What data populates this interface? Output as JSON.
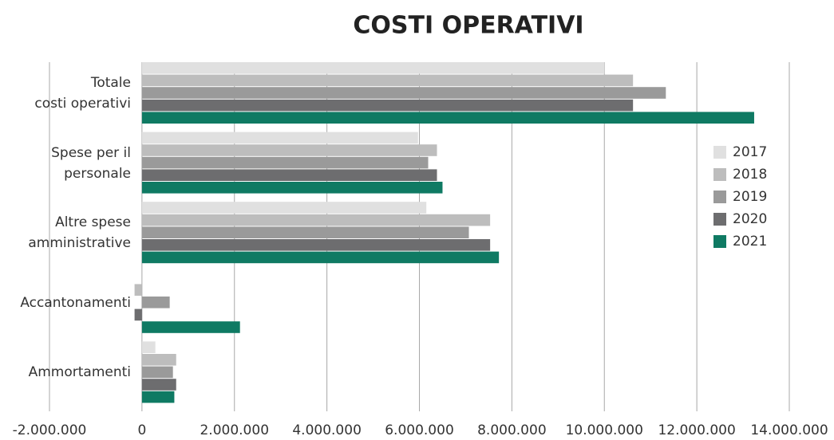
{
  "chart_data": {
    "type": "hbar",
    "title": "COSTI OPERATIVI",
    "categories": [
      "Totale\ncosti operativi",
      "Spese per il\npersonale",
      "Altre spese\namministrative",
      "Accantonamenti",
      "Ammortamenti"
    ],
    "series": [
      {
        "name": "2017",
        "color": "#e0e0e0",
        "values": [
          10000000,
          5970000,
          6150000,
          null,
          290000
        ]
      },
      {
        "name": "2018",
        "color": "#bdbdbd",
        "values": [
          10620000,
          6380000,
          7530000,
          -160000,
          740000
        ]
      },
      {
        "name": "2019",
        "color": "#9a9a9a",
        "values": [
          11330000,
          6190000,
          7070000,
          600000,
          670000
        ]
      },
      {
        "name": "2020",
        "color": "#6d6d6f",
        "values": [
          10620000,
          6380000,
          7530000,
          -160000,
          740000
        ]
      },
      {
        "name": "2021",
        "color": "#0f7a63",
        "values": [
          13240000,
          6500000,
          7720000,
          2120000,
          700000
        ]
      }
    ],
    "xlim": [
      -2000000,
      14000000
    ],
    "xticks": [
      {
        "value": -2000000,
        "label": "-2.000.000"
      },
      0,
      {
        "value": 2000000,
        "label": "2.000.000"
      },
      {
        "value": 4000000,
        "label": "4.000.000"
      },
      {
        "value": 6000000,
        "label": "6.000.000"
      },
      {
        "value": 8000000,
        "label": "8.000.000"
      },
      {
        "value": 10000000,
        "label": "10.000.000"
      },
      {
        "value": 12000000,
        "label": "12.000.000"
      },
      {
        "value": 14000000,
        "label": "14.000.000"
      }
    ],
    "grid": true,
    "legend": "right"
  }
}
